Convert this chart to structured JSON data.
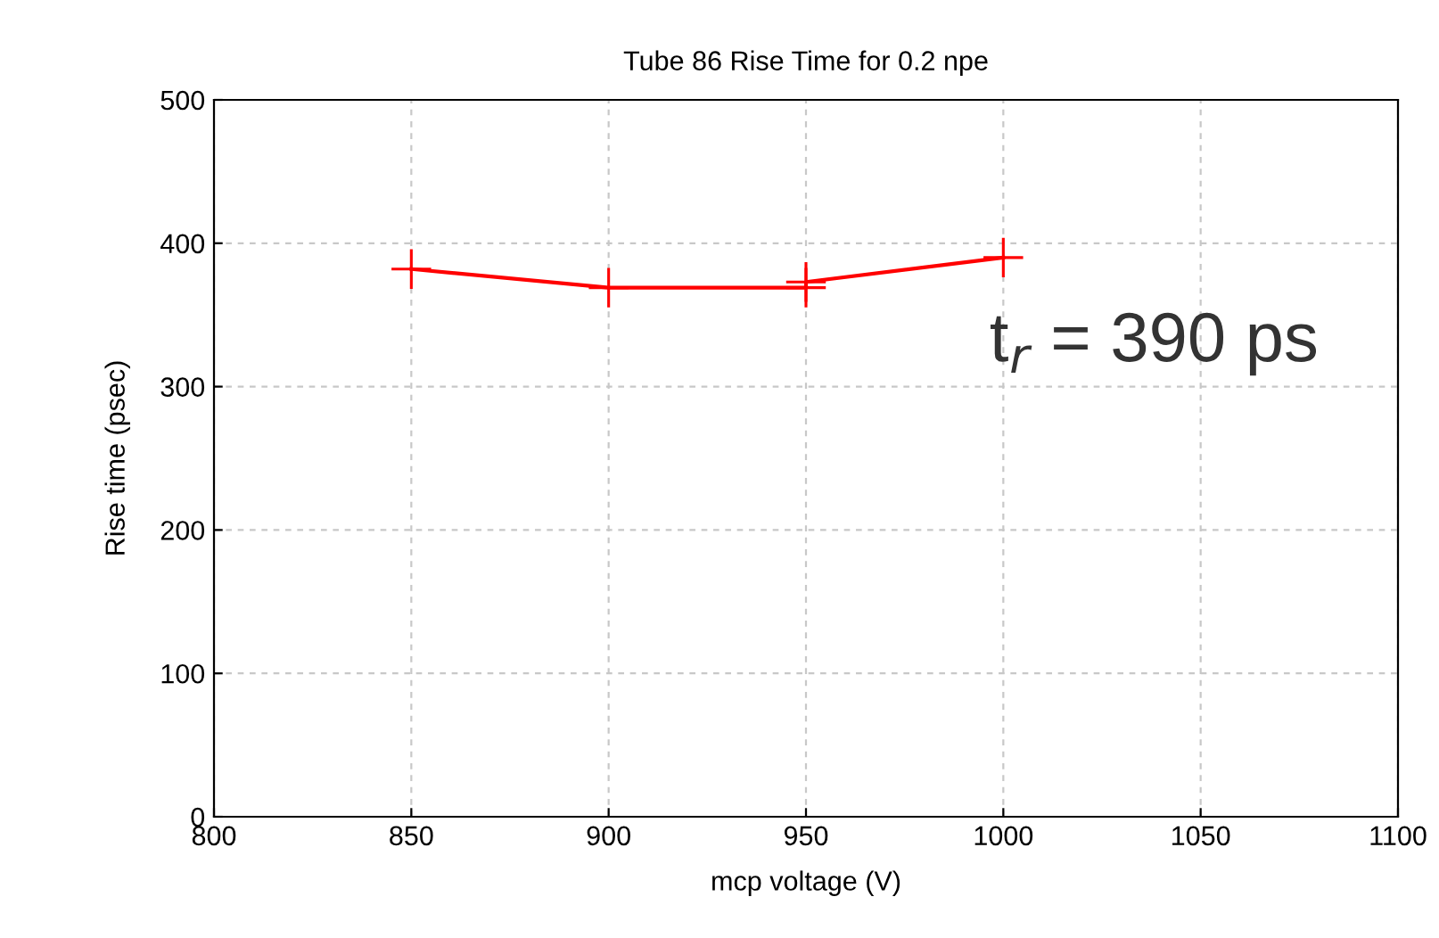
{
  "chart_data": {
    "type": "line",
    "title": "Tube 86 Rise Time for 0.2 npe",
    "xlabel": "mcp voltage (V)",
    "ylabel": "Rise time (psec)",
    "series": [
      {
        "color": "#ff0000",
        "x": [
          850,
          900,
          950,
          950,
          1000
        ],
        "values": [
          382,
          369,
          369,
          373,
          390
        ]
      }
    ],
    "xlim": [
      800,
      1100
    ],
    "xticks": [
      800,
      850,
      900,
      950,
      1000,
      1050,
      1100
    ],
    "ylim": [
      0,
      500
    ],
    "yticks": [
      0,
      100,
      200,
      300,
      400,
      500
    ],
    "grid": true,
    "marker": "cross",
    "line_style": "solid",
    "annotations": [
      "t$_{r}$ = 390 ps"
    ]
  }
}
